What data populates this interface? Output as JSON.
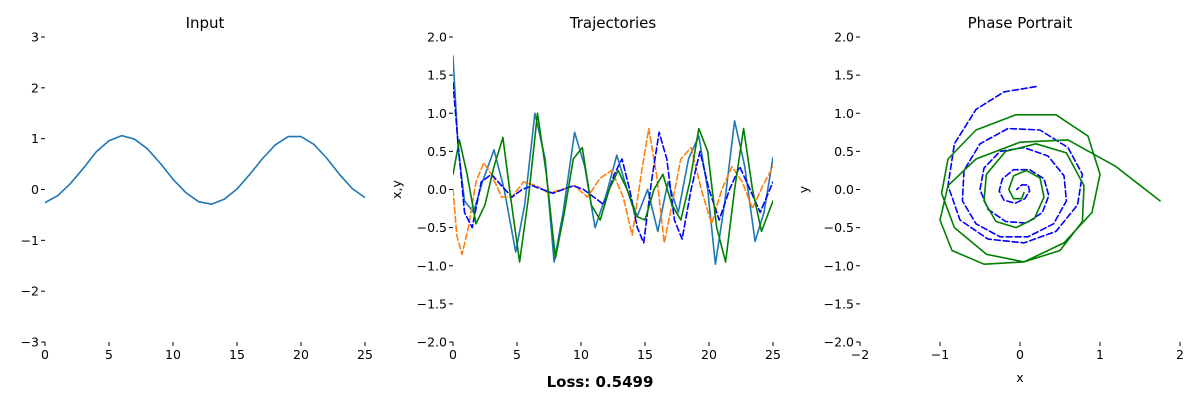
{
  "footer": {
    "loss_text": "Loss: 0.5499"
  },
  "chart_data": [
    {
      "type": "line",
      "title": "Input",
      "xlabel": "",
      "ylabel": "",
      "xlim": [
        0,
        25
      ],
      "ylim": [
        -3,
        3
      ],
      "xticks": [
        0,
        5,
        10,
        15,
        20,
        25
      ],
      "yticks": [
        -3,
        -2,
        -1,
        0,
        1,
        2,
        3
      ],
      "xtick_labels": [
        "0",
        "5",
        "10",
        "15",
        "20",
        "25"
      ],
      "ytick_labels": [
        "−3",
        "−2",
        "−1",
        "0",
        "1",
        "2",
        "3"
      ],
      "grid": false,
      "series": [
        {
          "color": "#1f77b4",
          "style": "solid",
          "x": [
            0,
            1,
            2,
            3,
            4,
            5,
            6,
            7,
            8,
            9,
            10,
            11,
            12,
            13,
            14,
            15,
            16,
            17,
            18,
            19,
            20,
            21,
            22,
            23,
            24,
            25
          ],
          "y": [
            -0.26,
            -0.12,
            0.12,
            0.42,
            0.74,
            0.96,
            1.06,
            0.99,
            0.8,
            0.52,
            0.2,
            -0.06,
            -0.24,
            -0.29,
            -0.19,
            0.01,
            0.3,
            0.61,
            0.88,
            1.04,
            1.04,
            0.89,
            0.62,
            0.3,
            0.02,
            -0.16
          ]
        }
      ]
    },
    {
      "type": "line",
      "title": "Trajectories",
      "xlabel": "",
      "ylabel": "x,y",
      "xlim": [
        0,
        25
      ],
      "ylim": [
        -2,
        2
      ],
      "xticks": [
        0,
        5,
        10,
        15,
        20,
        25
      ],
      "yticks": [
        -2.0,
        -1.5,
        -1.0,
        -0.5,
        0.0,
        0.5,
        1.0,
        1.5,
        2.0
      ],
      "xtick_labels": [
        "0",
        "5",
        "10",
        "15",
        "20",
        "25"
      ],
      "ytick_labels": [
        "−2.0",
        "−1.5",
        "−1.0",
        "−0.5",
        "0.0",
        "0.5",
        "1.0",
        "1.5",
        "2.0"
      ],
      "grid": false,
      "series": [
        {
          "color": "#1f77b4",
          "style": "solid",
          "x": [
            0,
            0.4,
            0.9,
            1.6,
            2.3,
            3.2,
            4.0,
            4.9,
            5.6,
            6.4,
            7.2,
            7.9,
            8.6,
            9.5,
            10.3,
            11.1,
            12.0,
            12.8,
            13.6,
            14.4,
            15.2,
            16.0,
            16.8,
            17.6,
            18.4,
            19.2,
            19.9,
            20.5,
            21.2,
            22.0,
            22.8,
            23.6,
            24.3,
            25
          ],
          "y": [
            1.75,
            0.55,
            -0.15,
            -0.3,
            0.1,
            0.52,
            0.0,
            -0.82,
            -0.2,
            1.0,
            0.4,
            -0.95,
            -0.3,
            0.75,
            0.3,
            -0.5,
            -0.05,
            0.45,
            0.0,
            -0.35,
            0.0,
            -0.55,
            0.1,
            -0.3,
            0.4,
            0.7,
            0.0,
            -0.98,
            -0.2,
            0.9,
            0.3,
            -0.68,
            -0.3,
            0.42
          ]
        },
        {
          "color": "#ff7f0e",
          "style": "dashed",
          "x": [
            0,
            0.3,
            0.7,
            1.2,
            1.8,
            2.4,
            3.0,
            3.8,
            4.6,
            5.5,
            6.5,
            7.5,
            8.5,
            9.5,
            10.5,
            11.5,
            12.4,
            13.3,
            14.0,
            14.7,
            15.3,
            15.9,
            16.5,
            17.1,
            17.8,
            18.6,
            19.4,
            20.2,
            21.0,
            21.8,
            22.6,
            23.4,
            24.2,
            25
          ],
          "y": [
            0.0,
            -0.6,
            -0.85,
            -0.5,
            0.1,
            0.35,
            0.2,
            -0.1,
            -0.1,
            0.1,
            0.05,
            -0.05,
            0.0,
            0.05,
            -0.1,
            0.15,
            0.25,
            -0.1,
            -0.6,
            0.2,
            0.8,
            0.2,
            -0.7,
            -0.2,
            0.4,
            0.55,
            0.0,
            -0.45,
            0.0,
            0.3,
            0.1,
            -0.25,
            0.05,
            0.3
          ]
        },
        {
          "color": "#0000ff",
          "style": "dashed",
          "x": [
            0,
            0.4,
            0.9,
            1.5,
            2.2,
            3.0,
            3.8,
            4.6,
            5.4,
            6.2,
            7.0,
            7.8,
            8.6,
            9.4,
            10.2,
            11.0,
            11.8,
            12.6,
            13.2,
            13.8,
            14.4,
            14.9,
            15.5,
            16.1,
            16.7,
            17.3,
            17.9,
            18.6,
            19.3,
            20.0,
            20.8,
            21.6,
            22.4,
            23.2,
            24.0,
            25
          ],
          "y": [
            1.4,
            0.6,
            -0.3,
            -0.5,
            0.1,
            0.2,
            0.05,
            -0.1,
            0.0,
            0.05,
            0.0,
            -0.05,
            0.0,
            0.05,
            0.0,
            -0.1,
            -0.2,
            0.2,
            0.4,
            0.0,
            -0.5,
            -0.7,
            0.1,
            0.75,
            0.4,
            -0.4,
            -0.65,
            0.0,
            0.5,
            0.0,
            -0.4,
            0.0,
            0.3,
            0.0,
            -0.3,
            0.1
          ]
        },
        {
          "color": "#008000",
          "style": "solid",
          "x": [
            0,
            0.5,
            1.1,
            1.8,
            2.5,
            3.2,
            3.9,
            4.5,
            5.2,
            5.9,
            6.6,
            7.3,
            8.0,
            8.7,
            9.4,
            10.1,
            10.8,
            11.5,
            12.2,
            12.9,
            13.6,
            14.3,
            15.0,
            15.7,
            16.4,
            17.1,
            17.8,
            18.5,
            19.2,
            19.9,
            20.6,
            21.3,
            22.0,
            22.7,
            23.4,
            24.1,
            25
          ],
          "y": [
            0.2,
            0.65,
            0.2,
            -0.45,
            -0.2,
            0.3,
            0.68,
            -0.1,
            -0.95,
            -0.1,
            1.0,
            0.2,
            -0.9,
            -0.3,
            0.4,
            0.55,
            -0.2,
            -0.4,
            0.0,
            0.25,
            0.0,
            -0.35,
            -0.4,
            0.0,
            0.2,
            -0.2,
            -0.4,
            0.1,
            0.8,
            0.5,
            -0.5,
            -0.95,
            0.0,
            0.8,
            0.0,
            -0.55,
            -0.15
          ]
        }
      ]
    },
    {
      "type": "line",
      "title": "Phase Portrait",
      "xlabel": "x",
      "ylabel": "y",
      "xlim": [
        -2,
        2
      ],
      "ylim": [
        -2,
        2
      ],
      "xticks": [
        -2,
        -1,
        0,
        1,
        2
      ],
      "yticks": [
        -2.0,
        -1.5,
        -1.0,
        -0.5,
        0.0,
        0.5,
        1.0,
        1.5,
        2.0
      ],
      "xtick_labels": [
        "−2",
        "−1",
        "0",
        "1",
        "2"
      ],
      "ytick_labels": [
        "−2.0",
        "−1.5",
        "−1.0",
        "−0.5",
        "0.0",
        "0.5",
        "1.0",
        "1.5",
        "2.0"
      ],
      "grid": false,
      "series": [
        {
          "color": "#0000ff",
          "style": "dashed",
          "x": [
            0.2,
            -0.2,
            -0.55,
            -0.82,
            -0.9,
            -0.75,
            -0.4,
            0.05,
            0.45,
            0.72,
            0.78,
            0.6,
            0.25,
            -0.15,
            -0.5,
            -0.7,
            -0.72,
            -0.55,
            -0.25,
            0.1,
            0.42,
            0.58,
            0.55,
            0.35,
            0.05,
            -0.25,
            -0.45,
            -0.5,
            -0.4,
            -0.18,
            0.08,
            0.28,
            0.36,
            0.3,
            0.12,
            -0.08,
            -0.22,
            -0.26,
            -0.2,
            -0.06,
            0.06,
            0.12,
            0.1,
            0.02,
            -0.04
          ],
          "y": [
            1.35,
            1.28,
            1.05,
            0.6,
            0.05,
            -0.4,
            -0.65,
            -0.7,
            -0.55,
            -0.2,
            0.2,
            0.55,
            0.78,
            0.8,
            0.6,
            0.25,
            -0.15,
            -0.45,
            -0.62,
            -0.62,
            -0.45,
            -0.15,
            0.18,
            0.44,
            0.55,
            0.5,
            0.28,
            0.0,
            -0.26,
            -0.42,
            -0.44,
            -0.3,
            -0.08,
            0.14,
            0.26,
            0.26,
            0.14,
            -0.02,
            -0.14,
            -0.18,
            -0.12,
            -0.02,
            0.06,
            0.06,
            0.0
          ]
        },
        {
          "color": "#008000",
          "style": "solid",
          "x": [
            1.75,
            1.2,
            0.6,
            0.0,
            -0.55,
            -0.9,
            -1.0,
            -0.85,
            -0.45,
            0.05,
            0.55,
            0.9,
            1.0,
            0.85,
            0.45,
            -0.05,
            -0.55,
            -0.9,
            -0.98,
            -0.82,
            -0.42,
            0.05,
            0.5,
            0.78,
            0.8,
            0.58,
            0.2,
            -0.18,
            -0.42,
            -0.45,
            -0.3,
            -0.05,
            0.18,
            0.3,
            0.25,
            0.08,
            -0.08,
            -0.14,
            -0.08,
            0.02,
            0.05
          ],
          "y": [
            -0.15,
            0.3,
            0.65,
            0.62,
            0.4,
            0.05,
            -0.4,
            -0.8,
            -0.98,
            -0.95,
            -0.7,
            -0.3,
            0.2,
            0.7,
            0.98,
            0.98,
            0.78,
            0.4,
            -0.05,
            -0.5,
            -0.85,
            -0.95,
            -0.8,
            -0.42,
            0.05,
            0.48,
            0.6,
            0.5,
            0.2,
            -0.15,
            -0.42,
            -0.5,
            -0.38,
            -0.1,
            0.15,
            0.25,
            0.18,
            0.0,
            -0.12,
            -0.12,
            -0.04
          ]
        }
      ]
    }
  ]
}
